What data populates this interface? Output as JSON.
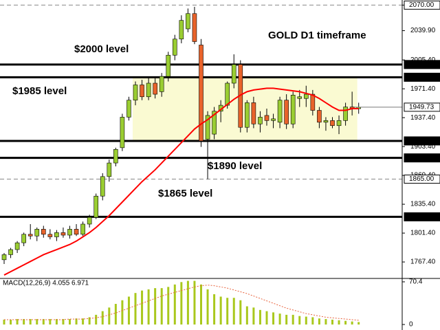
{
  "chart_data": [
    {
      "type": "candlestick",
      "title": "GOLD D1 timeframe",
      "ylim": [
        1748,
        2076
      ],
      "yticks": [
        {
          "value": 2070,
          "label": "2070.00"
        },
        {
          "value": 2039.9,
          "label": "2039.90"
        },
        {
          "value": 2005.4,
          "label": "2005.40"
        },
        {
          "value": 1971.4,
          "label": "1971.40"
        },
        {
          "value": 1937.4,
          "label": "1937.40"
        },
        {
          "value": 1903.4,
          "label": "1903.40"
        },
        {
          "value": 1869.4,
          "label": "1869.40"
        },
        {
          "value": 1835.4,
          "label": "1835.40"
        },
        {
          "value": 1801.4,
          "label": "1801.40"
        },
        {
          "value": 1767.4,
          "label": "1767.40"
        }
      ],
      "up_color": "#9acd32",
      "down_color": "#e8632b",
      "ohlc": [
        [
          1770,
          1778,
          1765,
          1776
        ],
        [
          1776,
          1784,
          1772,
          1782
        ],
        [
          1782,
          1792,
          1778,
          1790
        ],
        [
          1790,
          1802,
          1786,
          1800
        ],
        [
          1800,
          1812,
          1794,
          1798
        ],
        [
          1798,
          1808,
          1792,
          1806
        ],
        [
          1806,
          1810,
          1796,
          1800
        ],
        [
          1800,
          1806,
          1794,
          1797
        ],
        [
          1797,
          1805,
          1792,
          1802
        ],
        [
          1802,
          1808,
          1796,
          1799
        ],
        [
          1799,
          1810,
          1795,
          1806
        ],
        [
          1806,
          1812,
          1798,
          1800
        ],
        [
          1800,
          1815,
          1798,
          1812
        ],
        [
          1812,
          1823,
          1808,
          1820
        ],
        [
          1820,
          1848,
          1818,
          1845
        ],
        [
          1845,
          1872,
          1840,
          1868
        ],
        [
          1868,
          1888,
          1862,
          1884
        ],
        [
          1884,
          1902,
          1880,
          1900
        ],
        [
          1902,
          1942,
          1898,
          1938
        ],
        [
          1938,
          1962,
          1934,
          1958
        ],
        [
          1958,
          1980,
          1952,
          1976
        ],
        [
          1976,
          1982,
          1958,
          1962
        ],
        [
          1962,
          1985,
          1958,
          1978
        ],
        [
          1978,
          1984,
          1960,
          1965
        ],
        [
          1968,
          1990,
          1962,
          1986
        ],
        [
          1986,
          2015,
          1980,
          2011
        ],
        [
          2011,
          2035,
          2005,
          2030
        ],
        [
          2030,
          2058,
          2025,
          2052
        ],
        [
          2042,
          2066,
          2038,
          2060
        ],
        [
          2060,
          2068,
          2024,
          2027
        ],
        [
          2023,
          2030,
          1903,
          1910
        ],
        [
          1912,
          1945,
          1865,
          1940
        ],
        [
          1918,
          1950,
          1912,
          1945
        ],
        [
          1945,
          1958,
          1932,
          1952
        ],
        [
          1952,
          1980,
          1948,
          1978
        ],
        [
          1978,
          2012,
          1972,
          2000
        ],
        [
          2000,
          2005,
          1920,
          1926
        ],
        [
          1926,
          1958,
          1920,
          1955
        ],
        [
          1955,
          1962,
          1925,
          1930
        ],
        [
          1930,
          1945,
          1920,
          1938
        ],
        [
          1940,
          1948,
          1928,
          1934
        ],
        [
          1934,
          1942,
          1925,
          1936
        ],
        [
          1932,
          1962,
          1925,
          1958
        ],
        [
          1958,
          1965,
          1924,
          1930
        ],
        [
          1930,
          1968,
          1925,
          1964
        ],
        [
          1960,
          1970,
          1950,
          1962
        ],
        [
          1960,
          1975,
          1950,
          1965
        ],
        [
          1965,
          1970,
          1940,
          1946
        ],
        [
          1946,
          1950,
          1925,
          1932
        ],
        [
          1932,
          1938,
          1922,
          1934
        ],
        [
          1934,
          1938,
          1925,
          1928
        ],
        [
          1928,
          1940,
          1918,
          1934
        ],
        [
          1934,
          1955,
          1928,
          1950
        ],
        [
          1950,
          1968,
          1940,
          1948
        ],
        [
          1948,
          1955,
          1942,
          1949.73
        ]
      ],
      "ma": {
        "color": "#ff0000",
        "values": [
          1752,
          1756,
          1760,
          1764,
          1768,
          1772,
          1776,
          1779,
          1782,
          1785,
          1788,
          1792,
          1797,
          1802,
          1808,
          1815,
          1822,
          1830,
          1838,
          1846,
          1854,
          1862,
          1869,
          1876,
          1884,
          1892,
          1900,
          1908,
          1916,
          1924,
          1930,
          1935,
          1941,
          1947,
          1953,
          1959,
          1964,
          1968,
          1970,
          1971,
          1972,
          1972,
          1971,
          1970,
          1969,
          1968,
          1966,
          1964,
          1960,
          1955,
          1950,
          1946,
          1946,
          1948,
          1948
        ]
      },
      "levels": [
        {
          "value": 2070,
          "label": "2070.00",
          "style": "dashed"
        },
        {
          "value": 2000,
          "label": "2000.00",
          "style": "solid"
        },
        {
          "value": 1985,
          "label": "1985.00",
          "style": "solid"
        },
        {
          "value": 1910,
          "label": "1910.00",
          "style": "solid"
        },
        {
          "value": 1890,
          "label": "1890.00",
          "style": "solid"
        },
        {
          "value": 1865,
          "label": "1865.00",
          "style": "dashed"
        },
        {
          "value": 1820.59,
          "label": "1820.59",
          "style": "solid"
        }
      ],
      "zone": {
        "from": 1910,
        "to": 1985,
        "color": "#fafad2"
      },
      "last_price": {
        "value": 1949.73,
        "label": "1949.73"
      },
      "annotations": [
        "$2000 level",
        "$1985 level",
        "$1890 level",
        "$1865 level"
      ]
    },
    {
      "type": "macd",
      "title": "MACD(12,26,9) 4.055 6.971",
      "ylim": [
        -6.8,
        76
      ],
      "yticks": [
        70.4,
        0
      ],
      "histogram": {
        "color": "#a9c81c",
        "values": [
          8,
          8,
          9,
          9,
          9,
          9,
          9,
          9,
          9,
          9,
          9,
          10,
          10,
          12,
          16,
          22,
          28,
          34,
          40,
          46,
          52,
          56,
          58,
          60,
          60,
          62,
          66,
          70,
          72,
          72,
          66,
          58,
          50,
          46,
          44,
          44,
          40,
          30,
          28,
          24,
          22,
          20,
          18,
          16,
          16,
          14,
          13,
          12,
          10,
          9,
          8,
          7,
          6,
          5,
          4.055
        ]
      },
      "signal": {
        "color": "#e8603a",
        "values": [
          8,
          8,
          8,
          8,
          8,
          8,
          8,
          8,
          8,
          8,
          9,
          9,
          9,
          10,
          11,
          13,
          16,
          19,
          23,
          27,
          31,
          35,
          39,
          43,
          47,
          50,
          53,
          56,
          59,
          62,
          64,
          65,
          64,
          62,
          60,
          57,
          54,
          51,
          47,
          43,
          39,
          35,
          31,
          27,
          24,
          21,
          18,
          16,
          14,
          12,
          11,
          10,
          9,
          8,
          6.971
        ]
      }
    }
  ]
}
